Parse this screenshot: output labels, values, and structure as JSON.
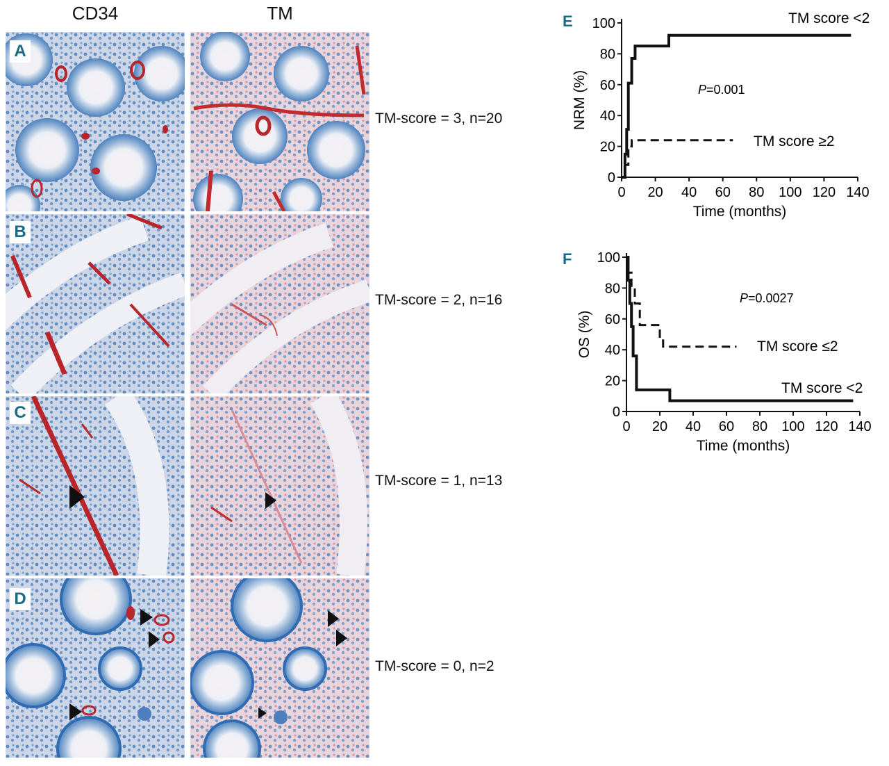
{
  "columns": {
    "left": "CD34",
    "right": "TM"
  },
  "panels": [
    {
      "letter": "A",
      "score_label": "TM-score = 3, n=20"
    },
    {
      "letter": "B",
      "score_label": "TM-score = 2, n=16"
    },
    {
      "letter": "C",
      "score_label": "TM-score = 1, n=13"
    },
    {
      "letter": "D",
      "score_label": "TM-score = 0, n=2"
    }
  ],
  "chart_data": [
    {
      "type": "line",
      "panel_letter": "E",
      "title": "",
      "xlabel": "Time (months)",
      "ylabel": "NRM (%)",
      "xlim": [
        0,
        140
      ],
      "ylim": [
        0,
        100
      ],
      "xticks": [
        "0",
        "20",
        "40",
        "60",
        "80",
        "100",
        "120",
        "140"
      ],
      "yticks": [
        "0",
        "20",
        "40",
        "60",
        "80",
        "100"
      ],
      "annotation": "P=0.001",
      "series": [
        {
          "name": "TM score <2",
          "style": "solid",
          "x": [
            0,
            2,
            2,
            3,
            3,
            4,
            4,
            6,
            6,
            8,
            8,
            28,
            28,
            136
          ],
          "y": [
            0,
            0,
            15,
            15,
            31,
            31,
            61,
            61,
            77,
            77,
            85,
            85,
            92,
            92
          ]
        },
        {
          "name": "TM score ≥2",
          "style": "dashed",
          "x": [
            0,
            2,
            2,
            4,
            4,
            6,
            6,
            66
          ],
          "y": [
            0,
            0,
            8,
            8,
            20,
            20,
            24,
            24
          ]
        }
      ]
    },
    {
      "type": "line",
      "panel_letter": "F",
      "title": "",
      "xlabel": "Time (months)",
      "ylabel": "OS (%)",
      "xlim": [
        0,
        140
      ],
      "ylim": [
        0,
        100
      ],
      "xticks": [
        "0",
        "20",
        "40",
        "60",
        "80",
        "100",
        "120",
        "140"
      ],
      "yticks": [
        "0",
        "20",
        "40",
        "60",
        "80",
        "100"
      ],
      "annotation": "P=0.0027",
      "series": [
        {
          "name": "TM score ≤2",
          "style": "dashed",
          "x": [
            0,
            1,
            1,
            3,
            3,
            5,
            5,
            8,
            8,
            20,
            20,
            22,
            22,
            66
          ],
          "y": [
            100,
            100,
            90,
            90,
            80,
            80,
            70,
            70,
            56,
            56,
            46,
            46,
            42,
            42
          ]
        },
        {
          "name": "TM score <2",
          "style": "solid",
          "x": [
            0,
            1,
            1,
            2,
            2,
            3,
            3,
            4,
            4,
            6,
            6,
            26,
            26,
            136
          ],
          "y": [
            100,
            100,
            85,
            85,
            70,
            70,
            55,
            55,
            36,
            36,
            14,
            14,
            7,
            7
          ]
        }
      ]
    }
  ]
}
